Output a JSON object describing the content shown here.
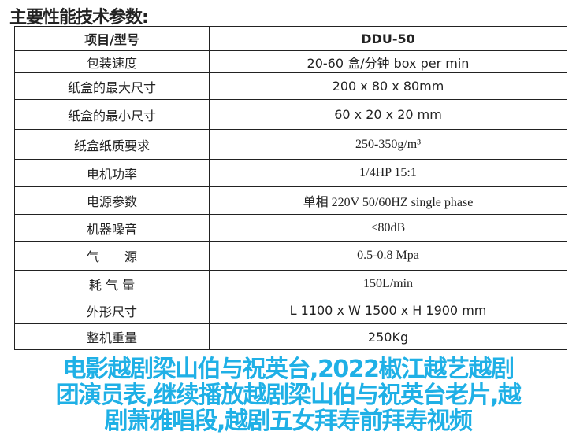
{
  "title": "主要性能技术参数:",
  "table": {
    "header": [
      "项目/型号",
      "DDU-50"
    ],
    "rows": [
      [
        "包装速度",
        "20-60 盒/分钟 box per min"
      ],
      [
        "纸盒的最大尺寸",
        "200 x 80 x 80mm"
      ],
      [
        "纸盒的最小尺寸",
        "60 x 20 x 20 mm"
      ],
      [
        "纸盒纸质要求",
        "250-350g/m³"
      ],
      [
        "电机功率",
        "1/4HP 15:1"
      ],
      [
        "电源参数",
        "单相 220V 50/60HZ single phase"
      ],
      [
        "机器噪音",
        "≤80dB"
      ],
      [
        "气　　源",
        "0.5-0.8 Mpa"
      ],
      [
        "耗 气 量",
        "150L/min"
      ],
      [
        "外形尺寸",
        "L 1100 x   W 1500 x   H 1900 mm"
      ],
      [
        "整机重量",
        "250Kg"
      ]
    ]
  },
  "overlay": {
    "lines": [
      "电影越剧梁山伯与祝英台,2022椒江越艺越剧",
      "团演员表,继续播放越剧梁山伯与祝英台老片,越",
      "剧萧雅唱段,越剧五女拜寿前拜寿视频"
    ],
    "color": "#1fb0e6"
  }
}
